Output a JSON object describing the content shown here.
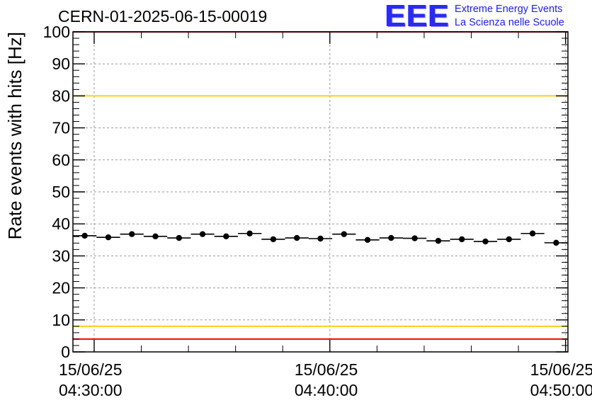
{
  "header": {
    "title": "CERN-01-2025-06-15-00019",
    "logo": {
      "mark": "EEE",
      "line1": "Extreme Energy Events",
      "line2": "La Scienza nelle Scuole"
    }
  },
  "chart_data": {
    "type": "scatter",
    "title": "CERN-01-2025-06-15-00019",
    "ylabel": "Rate events with hits [Hz]",
    "xlabel": "",
    "xlim_min": [
      0,
      21.0
    ],
    "ylim": [
      0,
      100
    ],
    "y_ticks": [
      "0",
      "10",
      "20",
      "30",
      "40",
      "50",
      "60",
      "70",
      "80",
      "90",
      "100"
    ],
    "x_ticks": [
      {
        "minute": 0.9,
        "date": "15/06/25",
        "time": "04:30:00"
      },
      {
        "minute": 10.9,
        "date": "15/06/25",
        "time": "04:40:00"
      },
      {
        "minute": 20.9,
        "date": "15/06/25",
        "time": "04:50:00"
      }
    ],
    "grid": true,
    "bin_width_min": 1,
    "series": [
      {
        "name": "rate",
        "marker": "circle",
        "color": "#000000",
        "x_min": [
          0.5,
          1.5,
          2.5,
          3.5,
          4.5,
          5.5,
          6.5,
          7.5,
          8.5,
          9.5,
          10.5,
          11.5,
          12.5,
          13.5,
          14.5,
          15.5,
          16.5,
          17.5,
          18.5,
          19.5,
          20.5
        ],
        "values": [
          36.3,
          35.8,
          36.8,
          36.1,
          35.6,
          36.8,
          36.1,
          37.0,
          35.2,
          35.6,
          35.4,
          36.8,
          35.0,
          35.6,
          35.5,
          34.7,
          35.2,
          34.5,
          35.2,
          37.0,
          34.1
        ]
      }
    ],
    "reference_lines": [
      {
        "name": "upper-red-limit",
        "value": 100,
        "color": "#ff0000"
      },
      {
        "name": "upper-yellow-limit",
        "value": 80,
        "color": "#f2d21a"
      },
      {
        "name": "lower-yellow-limit",
        "value": 8,
        "color": "#f2d21a"
      },
      {
        "name": "lower-red-limit",
        "value": 4,
        "color": "#ff0000"
      }
    ]
  }
}
